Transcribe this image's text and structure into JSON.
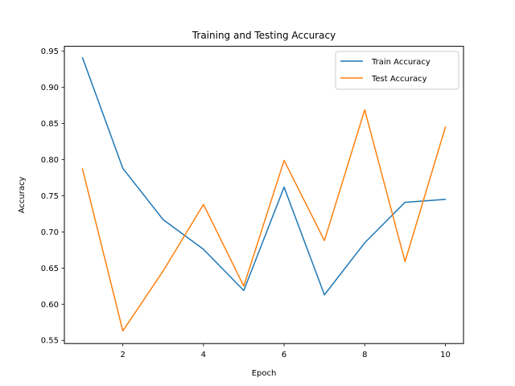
{
  "chart_data": {
    "type": "line",
    "title": "Training and Testing Accuracy",
    "xlabel": "Epoch",
    "ylabel": "Accuracy",
    "x": [
      1,
      2,
      3,
      4,
      5,
      6,
      7,
      8,
      9,
      10
    ],
    "xlim": [
      0.55,
      10.45
    ],
    "ylim": [
      0.5456,
      0.9568
    ],
    "xticks": [
      2,
      4,
      6,
      8,
      10
    ],
    "xtick_labels": [
      "2",
      "4",
      "6",
      "8",
      "10"
    ],
    "yticks": [
      0.55,
      0.6,
      0.65,
      0.7,
      0.75,
      0.8,
      0.85,
      0.9,
      0.95
    ],
    "ytick_labels": [
      "0.55",
      "0.60",
      "0.65",
      "0.70",
      "0.75",
      "0.80",
      "0.85",
      "0.90",
      "0.95"
    ],
    "grid": false,
    "legend_position": "top-right",
    "series": [
      {
        "name": "Train Accuracy",
        "color": "#1f77b4",
        "values": [
          0.941,
          0.788,
          0.717,
          0.676,
          0.619,
          0.762,
          0.613,
          0.685,
          0.741,
          0.745
        ]
      },
      {
        "name": "Test Accuracy",
        "color": "#ff7f0e",
        "values": [
          0.787,
          0.563,
          0.646,
          0.738,
          0.625,
          0.799,
          0.688,
          0.869,
          0.659,
          0.845
        ]
      }
    ]
  }
}
